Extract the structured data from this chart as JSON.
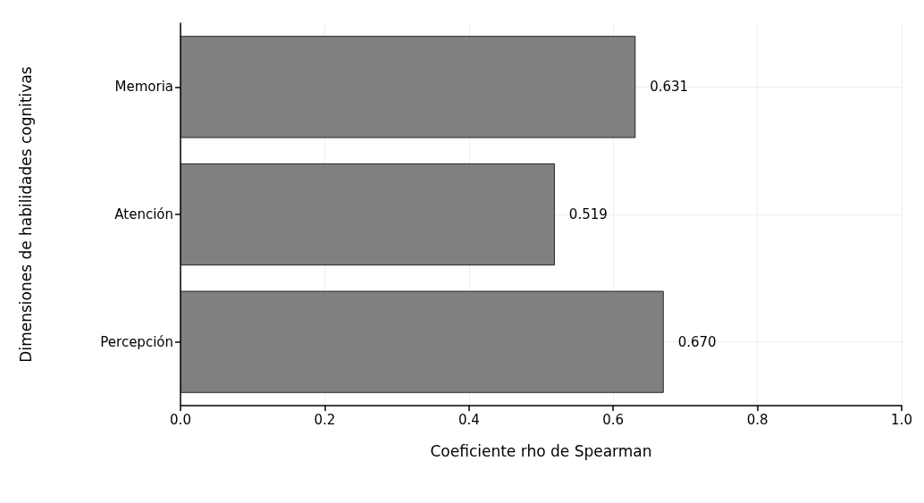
{
  "chart_data": {
    "type": "bar",
    "orientation": "horizontal",
    "categories": [
      "Memoria",
      "Atención",
      "Percepción"
    ],
    "values": [
      0.631,
      0.519,
      0.67
    ],
    "color": "#808080",
    "value_labels": [
      "0.631",
      "0.519",
      "0.670"
    ],
    "xlim": [
      0,
      1
    ],
    "xticks": [
      {
        "value": 0,
        "label": "0.0"
      },
      {
        "value": 0.2,
        "label": "0.2"
      },
      {
        "value": 0.4,
        "label": "0.4"
      },
      {
        "value": 0.6,
        "label": "0.6"
      },
      {
        "value": 0.8,
        "label": "0.8"
      },
      {
        "value": 1,
        "label": "1.0"
      }
    ],
    "xlabel": "Coeficiente rho de Spearman",
    "ylabel": "Dimensiones de habilidades cognitivas",
    "grid": true
  }
}
